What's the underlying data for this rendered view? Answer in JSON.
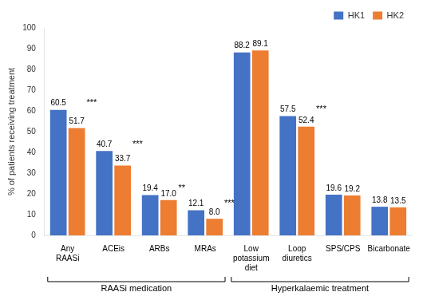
{
  "chart_data": {
    "type": "bar",
    "categories": [
      "Any\nRAASi",
      "ACEis",
      "ARBs",
      "MRAs",
      "Low\npotassium\ndiet",
      "Loop\ndiuretics",
      "SPS/CPS",
      "Bicarbonate"
    ],
    "series": [
      {
        "name": "HK1",
        "color": "#4472c4",
        "values": [
          60.5,
          40.7,
          19.4,
          12.1,
          88.2,
          57.5,
          19.6,
          13.8
        ]
      },
      {
        "name": "HK2",
        "color": "#ed7d31",
        "values": [
          51.7,
          33.7,
          17.0,
          8.0,
          89.1,
          52.4,
          19.2,
          13.5
        ],
        "value_labels": [
          "51.7",
          "33.7",
          "17.0",
          "8.0",
          "89.1",
          "52.4",
          "19.2",
          "13.5"
        ]
      }
    ],
    "ylabel": "% of patients receiving treatment",
    "ylim": [
      0,
      100
    ],
    "yticks": [
      0,
      10,
      20,
      30,
      40,
      50,
      60,
      70,
      80,
      90,
      100
    ],
    "grid": false,
    "legend": "upper right",
    "data_labels": true,
    "annotations": [
      {
        "category": "Any\nRAASi",
        "text": "***"
      },
      {
        "category": "ACEis",
        "text": "***"
      },
      {
        "category": "ARBs",
        "text": "**"
      },
      {
        "category": "MRAs",
        "text": "***"
      },
      {
        "category": "Loop\ndiuretics",
        "text": "***"
      }
    ],
    "groups": [
      {
        "name": "RAASi medication",
        "categories": [
          "Any\nRAASi",
          "ACEis",
          "ARBs",
          "MRAs"
        ]
      },
      {
        "name": "Hyperkalaemic treatment",
        "categories": [
          "Low\npotassium\ndiet",
          "Loop\ndiuretics",
          "SPS/CPS",
          "Bicarbonate"
        ]
      }
    ]
  }
}
